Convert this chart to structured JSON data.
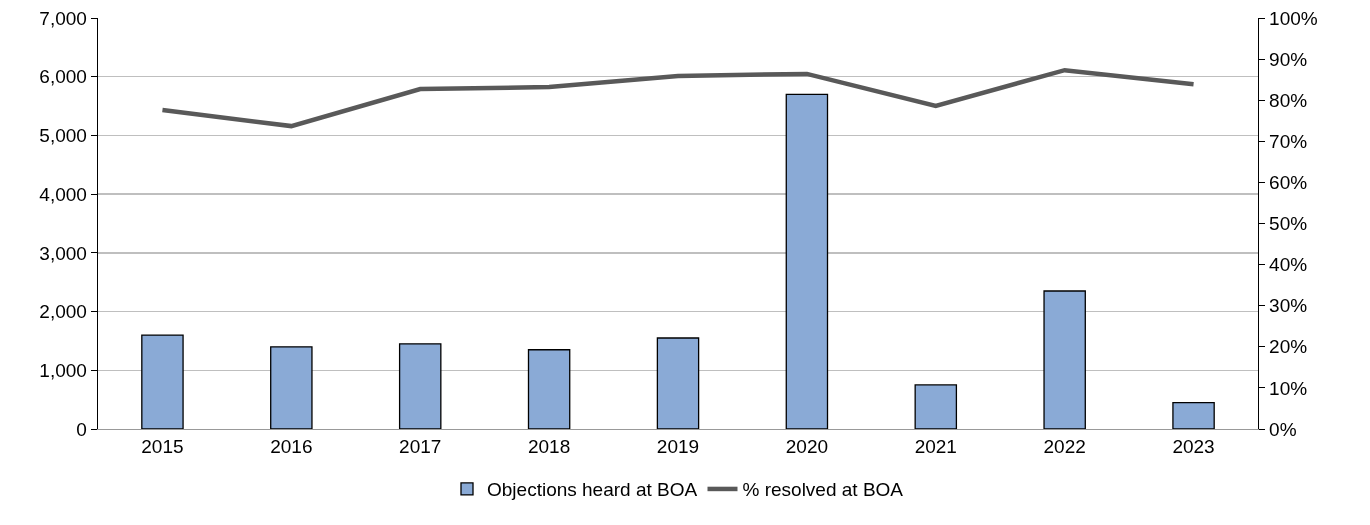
{
  "chart_data": {
    "type": "bar",
    "categories": [
      "2015",
      "2016",
      "2017",
      "2018",
      "2019",
      "2020",
      "2021",
      "2022",
      "2023"
    ],
    "series": [
      {
        "name": "Objections heard at BOA",
        "color": "#8aaad6",
        "values": [
          1600,
          1400,
          1450,
          1350,
          1550,
          5700,
          750,
          2350,
          450
        ]
      },
      {
        "name": "% resolved at BOA",
        "type": "line",
        "axis": "y2",
        "color": "#595959",
        "values": [
          77.6,
          73.7,
          82.7,
          83.2,
          85.9,
          86.4,
          78.6,
          87.3,
          83.9
        ]
      }
    ],
    "ylim": [
      0,
      7000
    ],
    "yticks": [
      {
        "value": 0,
        "label": "0"
      },
      {
        "value": 1000,
        "label": "1,000"
      },
      {
        "value": 2000,
        "label": "2,000"
      },
      {
        "value": 3000,
        "label": "3,000"
      },
      {
        "value": 4000,
        "label": "4,000"
      },
      {
        "value": 5000,
        "label": "5,000"
      },
      {
        "value": 6000,
        "label": "6,000"
      },
      {
        "value": 7000,
        "label": "7,000"
      }
    ],
    "y2lim": [
      0,
      100
    ],
    "y2ticks": [
      {
        "value": 0,
        "label": "0%"
      },
      {
        "value": 10,
        "label": "10%"
      },
      {
        "value": 20,
        "label": "20%"
      },
      {
        "value": 30,
        "label": "30%"
      },
      {
        "value": 40,
        "label": "40%"
      },
      {
        "value": 50,
        "label": "50%"
      },
      {
        "value": 60,
        "label": "60%"
      },
      {
        "value": 70,
        "label": "70%"
      },
      {
        "value": 80,
        "label": "80%"
      },
      {
        "value": 90,
        "label": "90%"
      },
      {
        "value": 100,
        "label": "100%"
      }
    ],
    "grid": "y",
    "legend": "bottom",
    "marker": "none",
    "line_style": "solid"
  }
}
